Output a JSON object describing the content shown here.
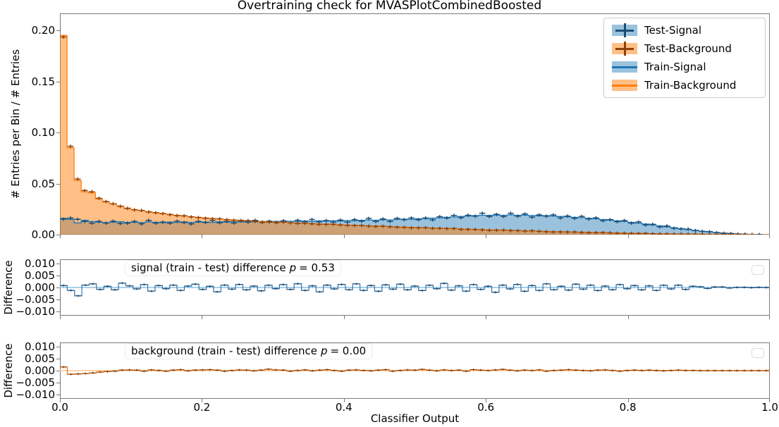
{
  "chart_data": {
    "type": "histogram",
    "title": "Overtraining check for MVASPlotCombinedBoosted",
    "xlabel": "Classifier Output",
    "ylabel_main": "# Entries per Bin / # Entries",
    "ylabel_diff": "Difference",
    "grid": false,
    "legend_position": "upper right",
    "xlim": [
      0.0,
      1.0
    ],
    "ylim_main": [
      0.0,
      0.2166
    ],
    "ylim_diff": [
      -0.0118,
      0.0118
    ],
    "xtick_vals": [
      0.0,
      0.2,
      0.4,
      0.6,
      0.8,
      1.0
    ],
    "xtick_labels": [
      "0.0",
      "0.2",
      "0.4",
      "0.6",
      "0.8",
      "1.0"
    ],
    "ytick_vals_main": [
      0.0,
      0.05,
      0.1,
      0.15,
      0.2
    ],
    "ytick_labels_main": [
      "0.00",
      "0.05",
      "0.10",
      "0.15",
      "0.20"
    ],
    "ytick_vals_diff": [
      0.01,
      0.005,
      0.0,
      -0.005,
      -0.01
    ],
    "ytick_labels_diff": [
      "0.010",
      "0.005",
      "0.000",
      "−0.005",
      "−0.010"
    ],
    "bin_width": 0.01,
    "n_bins": 100,
    "series": [
      {
        "name": "Test-Signal",
        "style": "errorbar",
        "color": "#1d4e77",
        "values": [
          0.0152,
          0.0162,
          0.015,
          0.013,
          0.0113,
          0.013,
          0.0113,
          0.0132,
          0.0108,
          0.0113,
          0.0128,
          0.0106,
          0.014,
          0.0113,
          0.0122,
          0.0113,
          0.0132,
          0.0119,
          0.0105,
          0.013,
          0.0119,
          0.0138,
          0.0116,
          0.013,
          0.0114,
          0.0134,
          0.0122,
          0.0139,
          0.012,
          0.0131,
          0.0118,
          0.0135,
          0.0116,
          0.0141,
          0.0127,
          0.0148,
          0.0125,
          0.0138,
          0.0123,
          0.0142,
          0.0123,
          0.0147,
          0.0132,
          0.0159,
          0.013,
          0.0153,
          0.013,
          0.0159,
          0.0146,
          0.0163,
          0.0146,
          0.0163,
          0.0145,
          0.0176,
          0.0163,
          0.0188,
          0.0166,
          0.019,
          0.0181,
          0.021,
          0.0178,
          0.0198,
          0.0177,
          0.0209,
          0.0181,
          0.0203,
          0.0172,
          0.0193,
          0.0181,
          0.0193,
          0.0164,
          0.0182,
          0.016,
          0.0179,
          0.0154,
          0.0164,
          0.0136,
          0.0147,
          0.0127,
          0.0138,
          0.0113,
          0.0124,
          0.0095,
          0.0101,
          0.0076,
          0.0085,
          0.0063,
          0.0056,
          0.0054,
          0.004,
          0.0032,
          0.0029,
          0.002,
          0.0014,
          0.0011,
          0.0006,
          0.0004,
          0.0002,
          0.0001,
          0
        ]
      },
      {
        "name": "Test-Background",
        "style": "errorbar",
        "color": "#8f4107",
        "values": [
          0.1935,
          0.0865,
          0.0544,
          0.0432,
          0.042,
          0.0356,
          0.0324,
          0.0302,
          0.0278,
          0.0257,
          0.0243,
          0.0237,
          0.0222,
          0.0214,
          0.0207,
          0.0196,
          0.0186,
          0.0184,
          0.0174,
          0.0167,
          0.016,
          0.0156,
          0.0155,
          0.0147,
          0.0141,
          0.0138,
          0.0137,
          0.013,
          0.0123,
          0.0123,
          0.0121,
          0.0122,
          0.0116,
          0.0111,
          0.0112,
          0.0106,
          0.0101,
          0.0101,
          0.0102,
          0.0095,
          0.0091,
          0.009,
          0.009,
          0.0084,
          0.008,
          0.0083,
          0.0078,
          0.0073,
          0.0072,
          0.0067,
          0.0067,
          0.0068,
          0.0062,
          0.0062,
          0.0059,
          0.006,
          0.0052,
          0.0052,
          0.0051,
          0.0047,
          0.0043,
          0.0044,
          0.0045,
          0.004,
          0.0039,
          0.0035,
          0.0038,
          0.0033,
          0.003,
          0.0026,
          0.0027,
          0.0026,
          0.0026,
          0.0022,
          0.0019,
          0.002,
          0.0021,
          0.0017,
          0.0014,
          0.0014,
          0.0012,
          0.0011,
          0.0012,
          0.0009,
          0.0007,
          0.0007,
          0.0006,
          0.0006,
          0.0005,
          0.0005,
          0.0004,
          0.0003,
          0.0003,
          0.0002,
          0.0002,
          0.0001,
          0.0001,
          0.0001,
          0,
          0
        ]
      },
      {
        "name": "Train-Signal",
        "style": "filled-step",
        "color": "#1f77b4",
        "fill": "rgba(31,119,180,0.45)",
        "values": [
          0.016,
          0.015,
          0.0115,
          0.014,
          0.0128,
          0.0122,
          0.0118,
          0.0122,
          0.0126,
          0.012,
          0.0122,
          0.0118,
          0.0125,
          0.0121,
          0.0117,
          0.0123,
          0.012,
          0.0125,
          0.0119,
          0.0122,
          0.0124,
          0.012,
          0.0126,
          0.0123,
          0.0127,
          0.0124,
          0.0128,
          0.0125,
          0.0129,
          0.0126,
          0.013,
          0.0127,
          0.0132,
          0.0129,
          0.0134,
          0.013,
          0.0135,
          0.0132,
          0.0136,
          0.0133,
          0.0138,
          0.0135,
          0.014,
          0.0143,
          0.0141,
          0.0146,
          0.0144,
          0.0149,
          0.0152,
          0.015,
          0.0155,
          0.0158,
          0.0162,
          0.0165,
          0.017,
          0.0173,
          0.0178,
          0.0182,
          0.0186,
          0.019,
          0.0188,
          0.0192,
          0.019,
          0.0193,
          0.0189,
          0.0191,
          0.0187,
          0.0184,
          0.0186,
          0.0182,
          0.0178,
          0.0175,
          0.017,
          0.0166,
          0.016,
          0.0155,
          0.0148,
          0.0142,
          0.0135,
          0.0128,
          0.012,
          0.0112,
          0.0104,
          0.0095,
          0.0086,
          0.0077,
          0.0068,
          0.0059,
          0.005,
          0.0042,
          0.0034,
          0.0027,
          0.0021,
          0.0015,
          0.001,
          0.0007,
          0.0004,
          0.0002,
          0.0001,
          0
        ]
      },
      {
        "name": "Train-Background",
        "style": "filled-step",
        "color": "#ff7f0e",
        "fill": "rgba(255,127,14,0.5)",
        "values": [
          0.195,
          0.085,
          0.053,
          0.042,
          0.041,
          0.035,
          0.032,
          0.03,
          0.028,
          0.026,
          0.0245,
          0.0235,
          0.0225,
          0.0215,
          0.0205,
          0.0198,
          0.019,
          0.0183,
          0.0176,
          0.017,
          0.0164,
          0.0158,
          0.0153,
          0.0148,
          0.0144,
          0.014,
          0.0136,
          0.0132,
          0.0129,
          0.0126,
          0.0123,
          0.012,
          0.0117,
          0.0114,
          0.0111,
          0.0108,
          0.0105,
          0.0102,
          0.01,
          0.0097,
          0.0094,
          0.0091,
          0.0089,
          0.0086,
          0.0084,
          0.0081,
          0.0079,
          0.0076,
          0.0074,
          0.0072,
          0.0069,
          0.0067,
          0.0065,
          0.0063,
          0.0061,
          0.0058,
          0.0056,
          0.0054,
          0.0052,
          0.005,
          0.0048,
          0.0046,
          0.0044,
          0.0042,
          0.004,
          0.0038,
          0.0036,
          0.0034,
          0.0032,
          0.003,
          0.0029,
          0.0027,
          0.0025,
          0.0024,
          0.0022,
          0.0021,
          0.0019,
          0.0018,
          0.0016,
          0.0015,
          0.0014,
          0.0012,
          0.0011,
          0.001,
          0.0009,
          0.0008,
          0.0007,
          0.0006,
          0.0005,
          0.0005,
          0.0004,
          0.0003,
          0.0003,
          0.0002,
          0.0002,
          0.0001,
          0.0001,
          0.0001,
          0,
          0
        ]
      }
    ],
    "diff_panels": [
      {
        "name": "signal",
        "step_color": "#3776ab",
        "dash_color": "#1d4e77",
        "zero_color": "#a8cfe8",
        "label_prefix": "signal (train - test) difference",
        "p_symbol": "p",
        "p_value": "= 0.53",
        "data_end_bin": 97,
        "values": [
          0.0008,
          -0.0012,
          -0.0035,
          0.001,
          0.0015,
          -0.0008,
          0.0005,
          -0.001,
          0.0018,
          0.0007,
          -0.0006,
          0.0012,
          -0.0015,
          0.0008,
          -0.0005,
          0.001,
          -0.0012,
          0.0006,
          0.0014,
          -0.0008,
          0.0005,
          -0.0018,
          0.001,
          -0.0007,
          0.0013,
          -0.001,
          0.0006,
          -0.0014,
          0.0009,
          -0.0005,
          0.0012,
          -0.0008,
          0.0016,
          -0.0012,
          0.0007,
          -0.0018,
          0.001,
          -0.0006,
          0.0013,
          -0.0009,
          0.0015,
          -0.0012,
          0.0008,
          -0.0016,
          0.0011,
          -0.0007,
          0.0014,
          -0.001,
          0.0006,
          -0.0013,
          0.0009,
          -0.0005,
          0.0017,
          -0.0011,
          0.0007,
          -0.0015,
          0.0012,
          -0.0008,
          0.0005,
          -0.002,
          0.001,
          -0.0006,
          0.0013,
          -0.0016,
          0.0008,
          -0.0012,
          0.0015,
          -0.0009,
          0.0005,
          -0.0011,
          0.0014,
          -0.0007,
          0.001,
          -0.0013,
          0.0006,
          -0.0009,
          0.0012,
          -0.0005,
          0.0008,
          -0.001,
          0.0007,
          -0.0012,
          0.0009,
          -0.0006,
          0.001,
          -0.0008,
          0.0005,
          0.0003,
          -0.0004,
          0.0002,
          0.0002,
          -0.0002,
          0.0001,
          0.0001,
          -0.0001,
          0.0001,
          0,
          0,
          0,
          0
        ]
      },
      {
        "name": "background",
        "step_color": "#e8720c",
        "dash_color": "#8f4107",
        "zero_color": "#ffd2a8",
        "label_prefix": "background (train - test) difference",
        "p_symbol": "p",
        "p_value": "= 0.00",
        "data_end_bin": 97,
        "values": [
          0.0015,
          -0.0015,
          -0.0014,
          -0.0012,
          -0.001,
          -0.0006,
          -0.0004,
          -0.0002,
          0.0002,
          0.0003,
          0.0002,
          -0.0002,
          0.0003,
          0.0001,
          -0.0002,
          0.0002,
          0.0004,
          -0.0001,
          0.0002,
          0.0003,
          0.0004,
          0.0002,
          -0.0002,
          0.0001,
          0.0003,
          0.0002,
          -0.0001,
          0.0002,
          0.0006,
          0.0003,
          0.0002,
          -0.0002,
          0.0001,
          0.0003,
          -0.0001,
          0.0002,
          0.0004,
          0.0001,
          -0.0002,
          0.0002,
          0.0003,
          0.0001,
          -0.0001,
          0.0002,
          0.0004,
          -0.0002,
          0.0001,
          0.0003,
          0.0002,
          0.0005,
          0.0002,
          -0.0001,
          0.0003,
          0.0001,
          0.0002,
          -0.0002,
          0.0004,
          0.0002,
          0.0001,
          0.0003,
          0.0005,
          0.0002,
          -0.0001,
          0.0002,
          0.0001,
          0.0003,
          -0.0002,
          0.0001,
          0.0002,
          0.0004,
          0.0002,
          0.0001,
          -0.0001,
          0.0002,
          0.0003,
          0.0001,
          -0.0002,
          0.0001,
          0.0002,
          0.0001,
          0.0002,
          0.0001,
          -0.0001,
          0.0001,
          0.0002,
          0.0001,
          0.0001,
          0,
          0,
          0,
          0,
          0,
          0,
          0,
          0,
          0,
          0,
          0,
          0,
          0
        ]
      }
    ]
  },
  "legend": {
    "items": [
      {
        "label": "Test-Signal",
        "patch": "rgba(31,119,180,0.45)",
        "line": "#1d4e77",
        "marker": "cross"
      },
      {
        "label": "Test-Background",
        "patch": "rgba(255,127,14,0.5)",
        "line": "#8f4107",
        "marker": "cross"
      },
      {
        "label": "Train-Signal",
        "patch": "rgba(31,119,180,0.45)",
        "line": "#1f77b4",
        "marker": "line"
      },
      {
        "label": "Train-Background",
        "patch": "rgba(255,127,14,0.5)",
        "line": "#ff7f0e",
        "marker": "line"
      }
    ]
  },
  "colors": {
    "signal": "#1f77b4",
    "background": "#ff7f0e",
    "test_signal_dark": "#1d4e77",
    "test_background_dark": "#8f4107",
    "spine": "#7a7a7a"
  }
}
